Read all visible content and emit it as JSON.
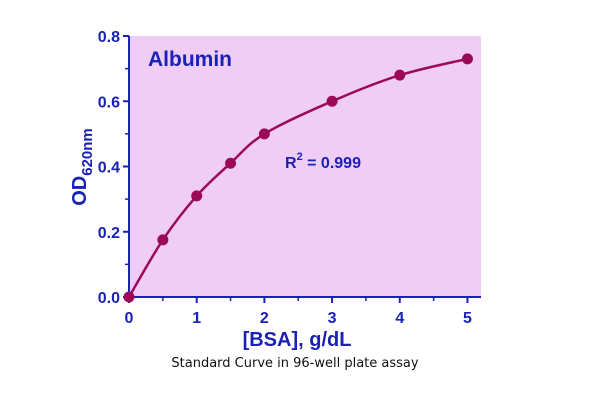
{
  "colors": {
    "plot_background": "#efcdf4",
    "axis": "#1a22b5",
    "text": "#1a22b5",
    "series": "#9c0a57"
  },
  "chart_data": {
    "type": "scatter",
    "title": "Albumin",
    "xlabel": "[BSA], g/dL",
    "ylabel": {
      "main": "OD",
      "subscript": "620nm"
    },
    "xlim": [
      0,
      5.2
    ],
    "ylim": [
      0,
      0.8
    ],
    "x_ticks": [
      "0",
      "1",
      "2",
      "3",
      "4",
      "5"
    ],
    "y_ticks": [
      "0.0",
      "0.2",
      "0.4",
      "0.6",
      "0.8"
    ],
    "grid": false,
    "legend": "none",
    "series": [
      {
        "x": [
          0,
          0.5,
          1,
          1.5,
          2,
          3,
          4,
          5
        ],
        "y": [
          0.0,
          0.175,
          0.31,
          0.41,
          0.5,
          0.6,
          0.68,
          0.73
        ]
      }
    ],
    "fit": {
      "type": "curve"
    },
    "annotation": {
      "r_label": "R",
      "r_sup": "2",
      "r_value": " = 0.999"
    }
  },
  "caption": "Standard Curve in 96-well plate assay"
}
